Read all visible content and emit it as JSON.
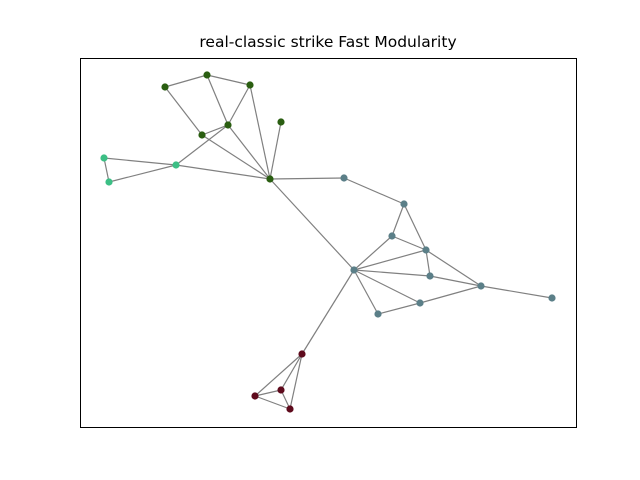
{
  "figure": {
    "title": "real-classic strike Fast Modularity"
  },
  "colors": {
    "edge": "#808080",
    "frame": "#000000",
    "background": "#ffffff",
    "community_dark_green": "#2a5e11",
    "community_light_green": "#3cbf85",
    "community_slate": "#5b7f88",
    "community_maroon": "#5e0a1c"
  },
  "graph": {
    "type": "network",
    "node_count": 24,
    "nodes": [
      {
        "id": "n1",
        "community": "community_dark_green"
      },
      {
        "id": "n2",
        "community": "community_dark_green"
      },
      {
        "id": "n3",
        "community": "community_dark_green"
      },
      {
        "id": "n4",
        "community": "community_dark_green"
      },
      {
        "id": "n5",
        "community": "community_dark_green"
      },
      {
        "id": "n6",
        "community": "community_dark_green"
      },
      {
        "id": "n7",
        "community": "community_dark_green"
      },
      {
        "id": "n8",
        "community": "community_light_green"
      },
      {
        "id": "n9",
        "community": "community_light_green"
      },
      {
        "id": "n10",
        "community": "community_light_green"
      },
      {
        "id": "n11",
        "community": "community_slate"
      },
      {
        "id": "n12",
        "community": "community_slate"
      },
      {
        "id": "n13",
        "community": "community_slate"
      },
      {
        "id": "n14",
        "community": "community_slate"
      },
      {
        "id": "n15",
        "community": "community_slate"
      },
      {
        "id": "n16",
        "community": "community_slate"
      },
      {
        "id": "n17",
        "community": "community_slate"
      },
      {
        "id": "n18",
        "community": "community_slate"
      },
      {
        "id": "n19",
        "community": "community_slate"
      },
      {
        "id": "n20",
        "community": "community_slate"
      },
      {
        "id": "n21",
        "community": "community_maroon"
      },
      {
        "id": "n22",
        "community": "community_maroon"
      },
      {
        "id": "n23",
        "community": "community_maroon"
      },
      {
        "id": "n24",
        "community": "community_maroon"
      }
    ],
    "edges": [
      [
        "n1",
        "n2"
      ],
      [
        "n2",
        "n3"
      ],
      [
        "n1",
        "n4"
      ],
      [
        "n2",
        "n5"
      ],
      [
        "n3",
        "n5"
      ],
      [
        "n3",
        "n7"
      ],
      [
        "n5",
        "n4"
      ],
      [
        "n4",
        "n7"
      ],
      [
        "n5",
        "n7"
      ],
      [
        "n6",
        "n7"
      ],
      [
        "n5",
        "n8"
      ],
      [
        "n8",
        "n7"
      ],
      [
        "n8",
        "n9"
      ],
      [
        "n9",
        "n10"
      ],
      [
        "n8",
        "n10"
      ],
      [
        "n7",
        "n11"
      ],
      [
        "n11",
        "n12"
      ],
      [
        "n12",
        "n13"
      ],
      [
        "n12",
        "n14"
      ],
      [
        "n13",
        "n14"
      ],
      [
        "n7",
        "n16"
      ],
      [
        "n13",
        "n16"
      ],
      [
        "n14",
        "n16"
      ],
      [
        "n16",
        "n15"
      ],
      [
        "n16",
        "n19"
      ],
      [
        "n16",
        "n18"
      ],
      [
        "n14",
        "n15"
      ],
      [
        "n14",
        "n17"
      ],
      [
        "n15",
        "n17"
      ],
      [
        "n18",
        "n19"
      ],
      [
        "n17",
        "n19"
      ],
      [
        "n17",
        "n20"
      ],
      [
        "n16",
        "n21"
      ],
      [
        "n21",
        "n22"
      ],
      [
        "n21",
        "n23"
      ],
      [
        "n21",
        "n24"
      ],
      [
        "n22",
        "n23"
      ],
      [
        "n22",
        "n24"
      ],
      [
        "n23",
        "n24"
      ]
    ]
  }
}
